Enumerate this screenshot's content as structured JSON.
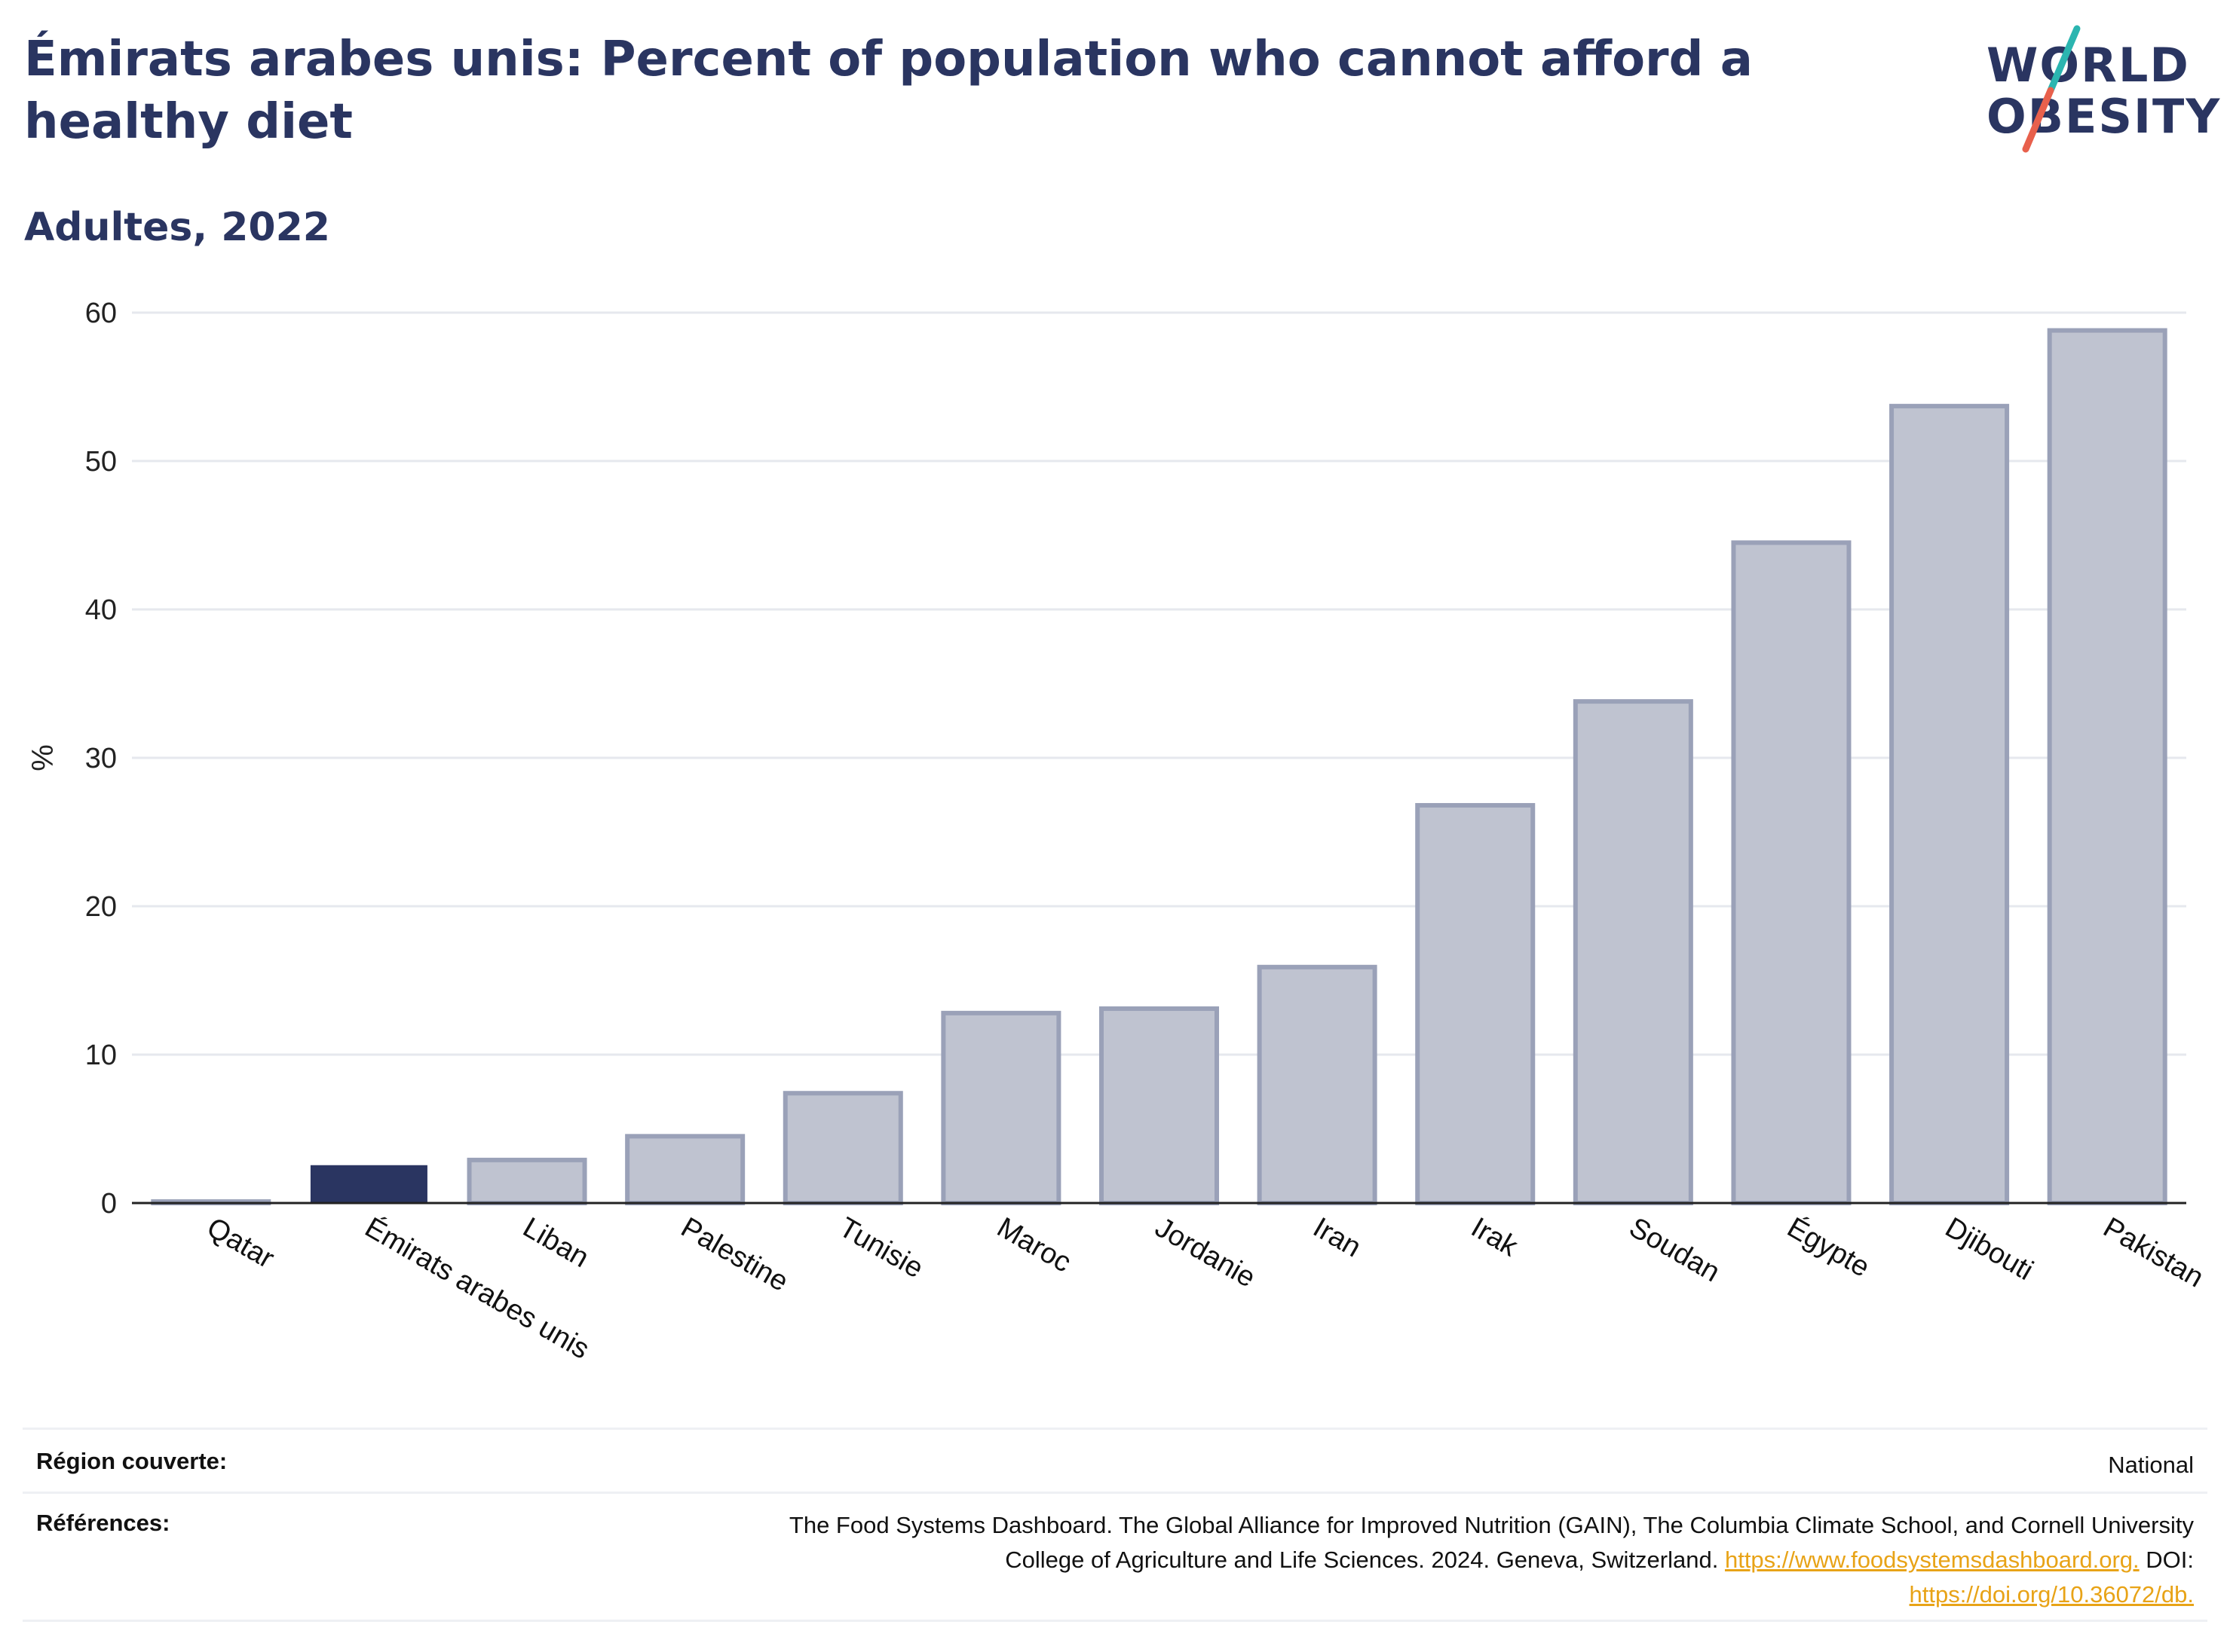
{
  "header": {
    "title": "Émirats arabes unis: Percent of population who cannot afford a healthy diet",
    "subtitle": "Adultes, 2022"
  },
  "logo": {
    "line1": "WORLD",
    "line2": "OBESITY",
    "accent_colors": [
      "#2bb5b0",
      "#e8604c"
    ]
  },
  "chart_data": {
    "type": "bar",
    "ylabel": "%",
    "ylim": [
      0,
      60
    ],
    "yticks": [
      0,
      10,
      20,
      30,
      40,
      50,
      60
    ],
    "grid": true,
    "highlight_category": "Émirats arabes unis",
    "highlight_color": "#2a3561",
    "bar_color": "#bfc3d0",
    "bar_edge_color": "#9aa1b8",
    "categories": [
      "Qatar",
      "Émirats arabes unis",
      "Liban",
      "Palestine",
      "Tunisie",
      "Maroc",
      "Jordanie",
      "Iran",
      "Irak",
      "Soudan",
      "Égypte",
      "Djibouti",
      "Pakistan"
    ],
    "values": [
      0.1,
      2.5,
      2.9,
      4.5,
      7.4,
      12.8,
      13.1,
      15.9,
      26.8,
      33.8,
      44.5,
      53.7,
      58.8
    ]
  },
  "footer": {
    "region_label": "Région couverte:",
    "region_value": "National",
    "references_label": "Références:",
    "references_text_1": "The Food Systems Dashboard. The Global Alliance for Improved Nutrition (GAIN), The Columbia Climate School, and Cornell University",
    "references_text_2": "College of Agriculture and Life Sciences. 2024. Geneva, Switzerland.",
    "references_link_1": "https://www.foodsystemsdashboard.org.",
    "references_doi_label": "DOI:",
    "references_link_2": "https://doi.org/10.36072/db."
  }
}
